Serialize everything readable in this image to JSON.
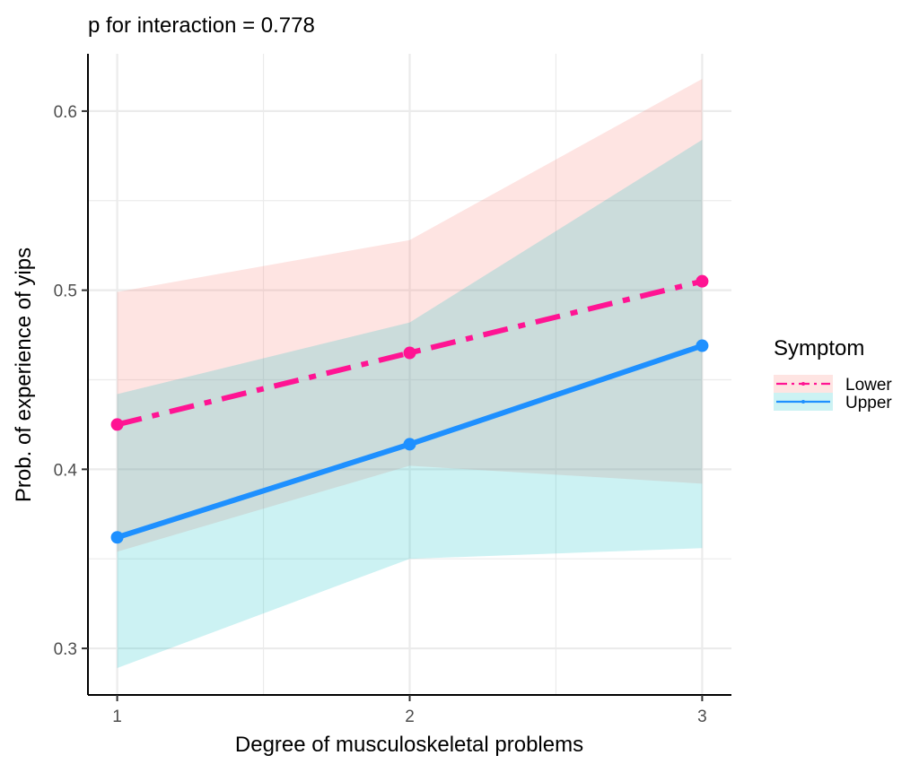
{
  "chart_data": {
    "type": "line",
    "title": "p for interaction = 0.778",
    "xlabel": "Degree of musculoskeletal problems",
    "ylabel": "Prob. of experience of yips",
    "x": [
      1,
      2,
      3
    ],
    "xticks": [
      "1",
      "2",
      "3"
    ],
    "xlim": [
      0.9,
      3.1
    ],
    "yticks": [
      {
        "value": 0.3,
        "label": "0.3"
      },
      {
        "value": 0.4,
        "label": "0.4"
      },
      {
        "value": 0.5,
        "label": "0.5"
      },
      {
        "value": 0.6,
        "label": "0.6"
      }
    ],
    "ylim": [
      0.274,
      0.632
    ],
    "grid": true,
    "legend_title": "Symptom",
    "legend_position": "right",
    "series": [
      {
        "name": "Lower",
        "values": [
          0.425,
          0.465,
          0.505
        ],
        "lower": [
          0.354,
          0.402,
          0.392
        ],
        "upper": [
          0.499,
          0.528,
          0.618
        ],
        "line_color": "#ff1493",
        "band_color": "#f8766d",
        "line_style": "dashdot"
      },
      {
        "name": "Upper",
        "values": [
          0.362,
          0.414,
          0.469
        ],
        "lower": [
          0.289,
          0.35,
          0.356
        ],
        "upper": [
          0.442,
          0.482,
          0.584
        ],
        "line_color": "#1e90ff",
        "band_color": "#00bfc4",
        "line_style": "solid"
      }
    ]
  }
}
